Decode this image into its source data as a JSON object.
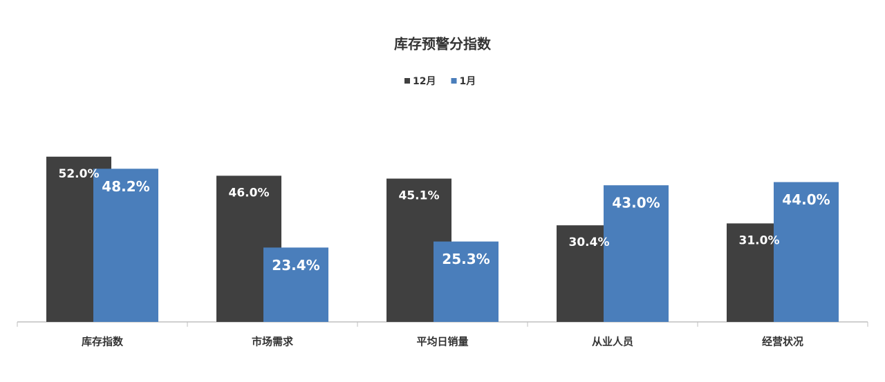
{
  "chart_data": {
    "type": "bar",
    "title": "库存预警分指数",
    "categories": [
      "库存指数",
      "市场需求",
      "平均日销量",
      "从业人员",
      "经营状况"
    ],
    "series": [
      {
        "name": "12月",
        "color": "#404040",
        "values": [
          52.0,
          46.0,
          45.1,
          30.4,
          31.0
        ],
        "value_labels": [
          "52.0%",
          "46.0%",
          "45.1%",
          "30.4%",
          "31.0%"
        ]
      },
      {
        "name": "1月",
        "color": "#4a7ebb",
        "values": [
          48.2,
          23.4,
          25.3,
          43.0,
          44.0
        ],
        "value_labels": [
          "48.2%",
          "23.4%",
          "25.3%",
          "43.0%",
          "44.0%"
        ]
      }
    ],
    "ylim": [
      0,
      60
    ],
    "legend": "top"
  }
}
